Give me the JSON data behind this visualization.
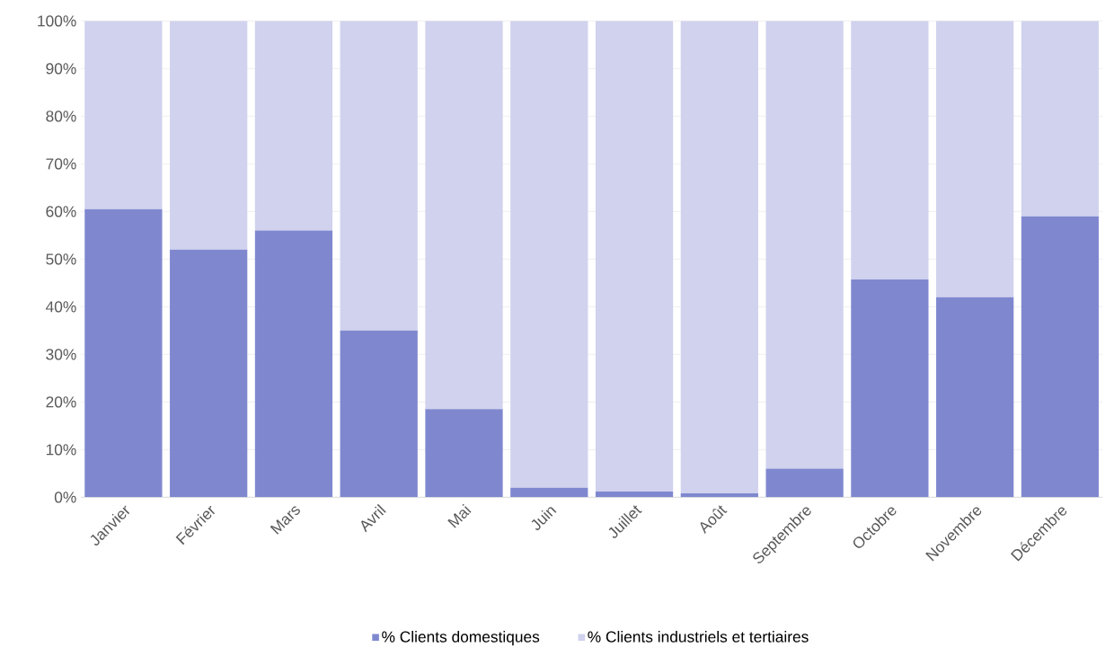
{
  "chart_data": {
    "type": "bar",
    "stacked": true,
    "categories": [
      "Janvier",
      "Février",
      "Mars",
      "Avril",
      "Mai",
      "Juin",
      "Juillet",
      "Août",
      "Septembre",
      "Octobre",
      "Novembre",
      "Décembre"
    ],
    "series": [
      {
        "name": "% Clients domestiques",
        "color": "#7f88cf",
        "values": [
          60.5,
          52,
          56,
          35,
          18.5,
          2,
          1.2,
          0.8,
          6,
          45.7,
          42,
          59
        ]
      },
      {
        "name": "% Clients industriels et tertiaires",
        "color": "#d0d2ee",
        "values": [
          39.5,
          48,
          44,
          65,
          81.5,
          98,
          98.8,
          99.2,
          94,
          54.3,
          58,
          41
        ]
      }
    ],
    "ylim": [
      0,
      100
    ],
    "yticks": [
      {
        "value": 0,
        "label": "0%"
      },
      {
        "value": 10,
        "label": "10%"
      },
      {
        "value": 20,
        "label": "20%"
      },
      {
        "value": 30,
        "label": "30%"
      },
      {
        "value": 40,
        "label": "40%"
      },
      {
        "value": 50,
        "label": "50%"
      },
      {
        "value": 60,
        "label": "60%"
      },
      {
        "value": 70,
        "label": "70%"
      },
      {
        "value": 80,
        "label": "80%"
      },
      {
        "value": 90,
        "label": "90%"
      },
      {
        "value": 100,
        "label": "100%"
      }
    ],
    "grid": "y",
    "legend": "bottom"
  }
}
